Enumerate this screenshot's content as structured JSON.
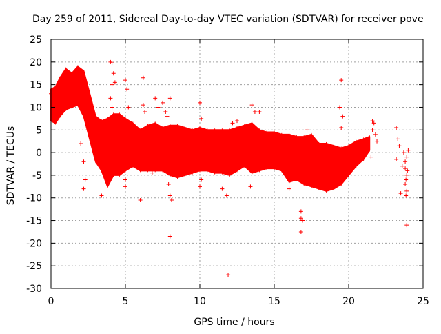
{
  "chart_data": {
    "type": "scatter",
    "title": "Day 259 of 2011, Sidereal Day-to-day VTEC variation (SDTVAR) for receiver pove",
    "xlabel": "GPS time / hours",
    "ylabel": "SDTVAR / TECUs",
    "xlim": [
      0,
      25
    ],
    "ylim": [
      -30,
      25
    ],
    "xticks": [
      0,
      5,
      10,
      15,
      20,
      25
    ],
    "yticks": [
      25,
      20,
      15,
      10,
      5,
      0,
      -5,
      -10,
      -15,
      -20,
      -25,
      -30
    ],
    "grid": true,
    "marker": "+",
    "series": [
      {
        "name": "SDTVAR",
        "color": "#ff0000",
        "band": [
          {
            "x": 0.0,
            "lo": 7,
            "hi": 14
          },
          {
            "x": 0.3,
            "lo": 6.5,
            "hi": 14.5
          },
          {
            "x": 0.6,
            "lo": 8,
            "hi": 16.5
          },
          {
            "x": 1.0,
            "lo": 9.5,
            "hi": 18.5
          },
          {
            "x": 1.4,
            "lo": 10,
            "hi": 17.5
          },
          {
            "x": 1.8,
            "lo": 10.5,
            "hi": 19
          },
          {
            "x": 2.2,
            "lo": 8,
            "hi": 18
          },
          {
            "x": 2.6,
            "lo": 3,
            "hi": 13
          },
          {
            "x": 3.0,
            "lo": -2,
            "hi": 8
          },
          {
            "x": 3.4,
            "lo": -4,
            "hi": 7
          },
          {
            "x": 3.8,
            "lo": -7.5,
            "hi": 7.5
          },
          {
            "x": 4.2,
            "lo": -5,
            "hi": 8.5
          },
          {
            "x": 4.6,
            "lo": -5,
            "hi": 8.5
          },
          {
            "x": 5.0,
            "lo": -4,
            "hi": 7.5
          },
          {
            "x": 5.5,
            "lo": -3,
            "hi": 6.5
          },
          {
            "x": 6.0,
            "lo": -4,
            "hi": 5
          },
          {
            "x": 6.5,
            "lo": -4,
            "hi": 6
          },
          {
            "x": 7.0,
            "lo": -4,
            "hi": 6.5
          },
          {
            "x": 7.5,
            "lo": -4,
            "hi": 5.5
          },
          {
            "x": 8.0,
            "lo": -5,
            "hi": 6
          },
          {
            "x": 8.5,
            "lo": -5.5,
            "hi": 6
          },
          {
            "x": 9.0,
            "lo": -5,
            "hi": 5.5
          },
          {
            "x": 9.5,
            "lo": -4.5,
            "hi": 5
          },
          {
            "x": 10.0,
            "lo": -4,
            "hi": 5.5
          },
          {
            "x": 10.5,
            "lo": -4,
            "hi": 5
          },
          {
            "x": 11.0,
            "lo": -4.5,
            "hi": 5
          },
          {
            "x": 11.5,
            "lo": -4.5,
            "hi": 5
          },
          {
            "x": 12.0,
            "lo": -5,
            "hi": 5
          },
          {
            "x": 12.5,
            "lo": -4,
            "hi": 5.5
          },
          {
            "x": 13.0,
            "lo": -3,
            "hi": 6
          },
          {
            "x": 13.5,
            "lo": -4.5,
            "hi": 6.5
          },
          {
            "x": 14.0,
            "lo": -4,
            "hi": 5
          },
          {
            "x": 14.5,
            "lo": -3.5,
            "hi": 4.5
          },
          {
            "x": 15.0,
            "lo": -3.5,
            "hi": 4.5
          },
          {
            "x": 15.5,
            "lo": -4,
            "hi": 4
          },
          {
            "x": 16.0,
            "lo": -6.5,
            "hi": 4
          },
          {
            "x": 16.5,
            "lo": -6,
            "hi": 3.5
          },
          {
            "x": 17.0,
            "lo": -7,
            "hi": 3.5
          },
          {
            "x": 17.5,
            "lo": -7.5,
            "hi": 4
          },
          {
            "x": 18.0,
            "lo": -8,
            "hi": 2
          },
          {
            "x": 18.5,
            "lo": -8.5,
            "hi": 2
          },
          {
            "x": 19.0,
            "lo": -8,
            "hi": 1.5
          },
          {
            "x": 19.5,
            "lo": -7,
            "hi": 1
          },
          {
            "x": 20.0,
            "lo": -5,
            "hi": 1.5
          },
          {
            "x": 20.5,
            "lo": -3,
            "hi": 2.5
          },
          {
            "x": 21.0,
            "lo": -1.5,
            "hi": 3
          },
          {
            "x": 21.4,
            "lo": 0.5,
            "hi": 3.5
          }
        ],
        "outliers": [
          [
            0.0,
            13
          ],
          [
            2.2,
            -2
          ],
          [
            2.2,
            -8
          ],
          [
            2.3,
            -6
          ],
          [
            2.0,
            2
          ],
          [
            3.4,
            -9.5
          ],
          [
            4.0,
            20
          ],
          [
            4.1,
            19.8
          ],
          [
            4.2,
            17.5
          ],
          [
            4.1,
            15
          ],
          [
            4.0,
            12
          ],
          [
            4.1,
            10
          ],
          [
            4.3,
            15.5
          ],
          [
            5.0,
            16
          ],
          [
            5.1,
            14
          ],
          [
            5.2,
            10
          ],
          [
            5.0,
            -6
          ],
          [
            5.0,
            -7.5
          ],
          [
            6.2,
            16.5
          ],
          [
            6.2,
            10.5
          ],
          [
            6.3,
            9
          ],
          [
            6.0,
            -10.5
          ],
          [
            6.8,
            -4.5
          ],
          [
            7.0,
            12
          ],
          [
            7.2,
            10
          ],
          [
            7.5,
            11
          ],
          [
            7.7,
            9
          ],
          [
            7.8,
            8
          ],
          [
            8.0,
            12
          ],
          [
            8.0,
            -18.5
          ],
          [
            8.0,
            -9.5
          ],
          [
            8.1,
            -10.5
          ],
          [
            7.9,
            -7
          ],
          [
            10.0,
            11
          ],
          [
            10.1,
            7.5
          ],
          [
            10.0,
            -7.5
          ],
          [
            10.1,
            -6
          ],
          [
            11.5,
            -8
          ],
          [
            11.8,
            -9.5
          ],
          [
            11.9,
            -27
          ],
          [
            12.2,
            6.5
          ],
          [
            12.5,
            7
          ],
          [
            13.5,
            10.5
          ],
          [
            13.7,
            9
          ],
          [
            14.0,
            9
          ],
          [
            13.4,
            -7.5
          ],
          [
            16.0,
            -8
          ],
          [
            16.8,
            -13
          ],
          [
            16.8,
            -14.5
          ],
          [
            16.8,
            -17.5
          ],
          [
            16.9,
            -15
          ],
          [
            17.2,
            5
          ],
          [
            19.5,
            16
          ],
          [
            19.4,
            10
          ],
          [
            19.6,
            8
          ],
          [
            19.5,
            5.5
          ],
          [
            19.4,
            -3
          ],
          [
            21.6,
            7
          ],
          [
            21.6,
            5
          ],
          [
            21.7,
            6.5
          ],
          [
            21.8,
            4
          ],
          [
            21.5,
            -1
          ],
          [
            21.9,
            2.5
          ],
          [
            23.2,
            5.5
          ],
          [
            23.3,
            3
          ],
          [
            23.4,
            1.5
          ],
          [
            23.2,
            -1.5
          ],
          [
            23.5,
            -9
          ],
          [
            23.6,
            -3
          ],
          [
            23.7,
            0
          ],
          [
            23.8,
            -2
          ],
          [
            23.9,
            -5
          ],
          [
            23.8,
            -7
          ],
          [
            23.9,
            -8.5
          ],
          [
            23.85,
            -9.5
          ],
          [
            23.9,
            -16
          ],
          [
            23.9,
            -1
          ],
          [
            24.0,
            0.5
          ],
          [
            23.95,
            -4
          ],
          [
            23.85,
            -6
          ],
          [
            23.8,
            -3.5
          ]
        ]
      }
    ]
  }
}
